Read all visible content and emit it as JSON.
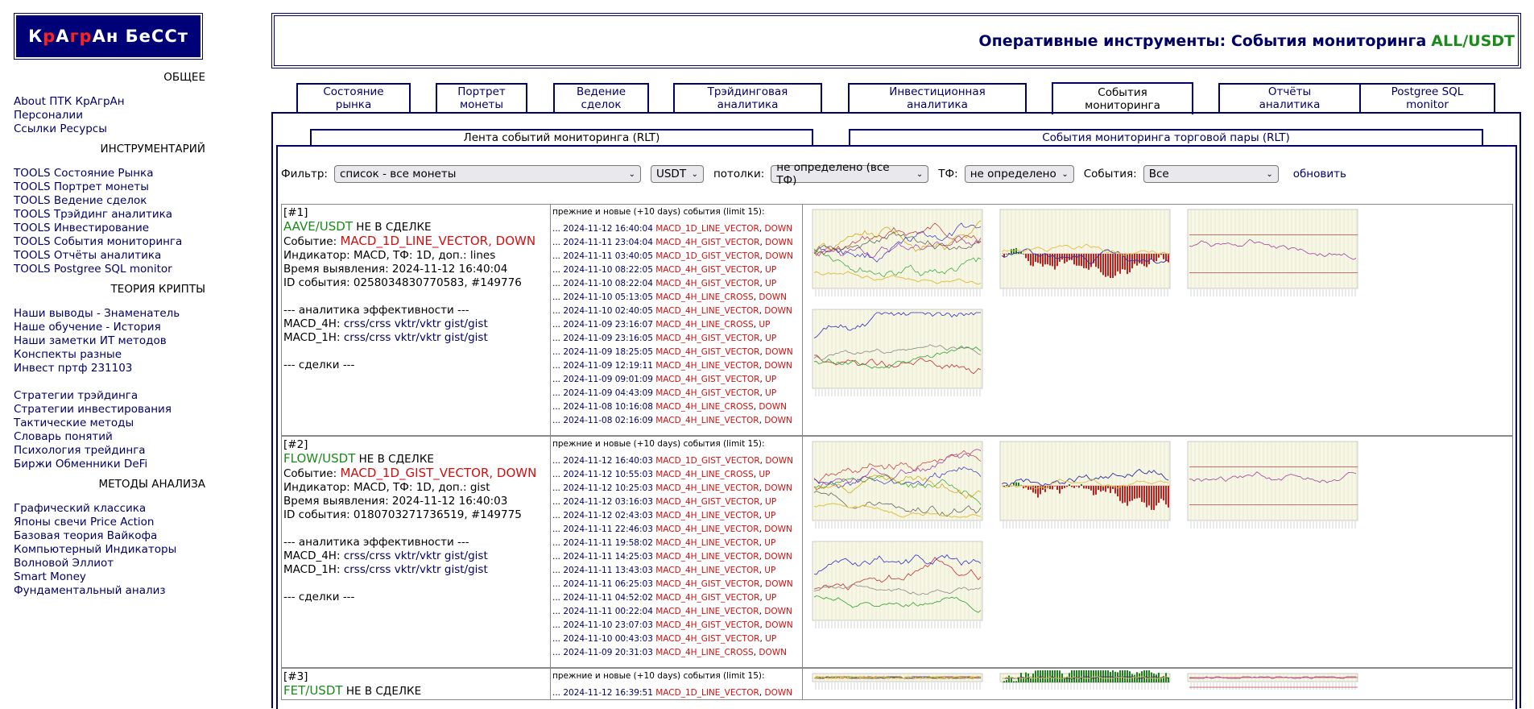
{
  "logo": {
    "parts": [
      {
        "t": "К",
        "red": false
      },
      {
        "t": "р",
        "red": true
      },
      {
        "t": "А",
        "red": false
      },
      {
        "t": "гр",
        "red": true
      },
      {
        "t": "А",
        "red": false
      },
      {
        "t": "н БеССт",
        "red": false
      }
    ]
  },
  "sidebar": {
    "sections": [
      {
        "title": "ОБЩЕЕ",
        "links": [
          "About ПТК КрАгрАн",
          "Персоналии",
          "Ссылки Ресурсы"
        ]
      },
      {
        "title": "ИНСТРУМЕНТАРИЙ",
        "links": [
          "TOOLS Состояние Рынка",
          "TOOLS Портрет монеты",
          "TOOLS Ведение сделок",
          "TOOLS Трэйдинг аналитика",
          "TOOLS Инвестирование",
          "TOOLS События мониторинга",
          "TOOLS Отчёты аналитика",
          "TOOLS Postgree SQL monitor"
        ]
      },
      {
        "title": "ТЕОРИЯ КРИПТЫ",
        "links": [
          "Наши выводы - Знаменатель",
          "Наше обучение - История",
          "Наши заметки ИТ методов",
          "Конспекты разные",
          "Инвест пртф 231103"
        ],
        "links2": [
          "Стратегии трэйдинга",
          "Стратегии инвестирования",
          "Тактические методы",
          "Словарь понятий",
          "Психология трейдинга",
          "Биржи Обменники DeFi"
        ]
      },
      {
        "title": "МЕТОДЫ АНАЛИЗА",
        "links": [
          "Графический классика",
          "Японы свечи Price Action",
          "Базовая теория Вайкофа",
          "Компьютерный Индикаторы",
          "Волновой Эллиот",
          "Smart Money",
          "Фундаментальный анализ"
        ]
      }
    ]
  },
  "header": {
    "title": "Оперативные инструменты: События мониторинга",
    "pair": "ALL/USDT"
  },
  "main_tabs": [
    {
      "l1": "Состояние",
      "l2": "рынка"
    },
    {
      "l1": "Портрет",
      "l2": "монеты"
    },
    {
      "l1": "Ведение",
      "l2": "сделок"
    },
    {
      "l1": "Трэйдинговая",
      "l2": "аналитика"
    },
    {
      "l1": "Инвестиционная",
      "l2": "аналитика"
    },
    {
      "l1": "События",
      "l2": "мониторинга"
    },
    {
      "l1": "Отчёты",
      "l2": "аналитика"
    },
    {
      "l1": "Postgree SQL",
      "l2": "monitor"
    }
  ],
  "sub_tabs": [
    "Лента событий мониторинга (RLT)",
    "События мониторинга торговой пары (RLT)"
  ],
  "filter": {
    "label": "Фильтр:",
    "coins": "список - все монеты",
    "quote": "USDT",
    "ceil_label": "потолки:",
    "ceil": "не определено (все ТФ)",
    "tf_label": "ТФ:",
    "tf": "не определено",
    "events_label": "События:",
    "events": "Все",
    "refresh": "обновить"
  },
  "events_header": "прежние и новые (+10 days) события (limit 15):",
  "rows": [
    {
      "num": "[#1]",
      "pair": "AAVE/USDT",
      "status": "НЕ В СДЕЛКЕ",
      "event_label": "Событие:",
      "event": "MACD_1D_LINE_VECTOR, DOWN",
      "indicator": "Индикатор: MACD, ТФ: 1D, доп.: lines",
      "time": "Время выявления: 2024-11-12 16:40:04",
      "id": "ID события: 0258034830770583, #149776",
      "analytics": "--- аналитика эффективности ---",
      "m4_label": "MACD_4H:",
      "m1_label": "MACD_1H:",
      "links": [
        "crss/crss",
        "vktr/vktr",
        "gist/gist"
      ],
      "deals": "--- сделки ---",
      "events": [
        [
          "2024-11-12 16:40:04",
          "MACD_1D_LINE_VECTOR",
          "DOWN"
        ],
        [
          "2024-11-11 23:04:04",
          "MACD_4H_GIST_VECTOR",
          "DOWN"
        ],
        [
          "2024-11-11 03:40:05",
          "MACD_1D_GIST_VECTOR",
          "DOWN"
        ],
        [
          "2024-11-10 08:22:05",
          "MACD_4H_GIST_VECTOR",
          "UP"
        ],
        [
          "2024-11-10 08:22:04",
          "MACD_4H_GIST_VECTOR",
          "UP"
        ],
        [
          "2024-11-10 05:13:05",
          "MACD_4H_LINE_CROSS",
          "DOWN"
        ],
        [
          "2024-11-10 02:40:05",
          "MACD_4H_LINE_VECTOR",
          "DOWN"
        ],
        [
          "2024-11-09 23:16:07",
          "MACD_4H_LINE_CROSS",
          "UP"
        ],
        [
          "2024-11-09 23:16:05",
          "MACD_4H_GIST_VECTOR",
          "UP"
        ],
        [
          "2024-11-09 18:25:05",
          "MACD_4H_GIST_VECTOR",
          "DOWN"
        ],
        [
          "2024-11-09 12:19:11",
          "MACD_4H_LINE_VECTOR",
          "DOWN"
        ],
        [
          "2024-11-09 09:01:09",
          "MACD_4H_GIST_VECTOR",
          "UP"
        ],
        [
          "2024-11-09 04:43:09",
          "MACD_4H_GIST_VECTOR",
          "UP"
        ],
        [
          "2024-11-08 10:16:08",
          "MACD_4H_LINE_CROSS",
          "DOWN"
        ],
        [
          "2024-11-08 02:16:09",
          "MACD_4H_LINE_VECTOR",
          "DOWN"
        ]
      ]
    },
    {
      "num": "[#2]",
      "pair": "FLOW/USDT",
      "status": "НЕ В СДЕЛКЕ",
      "event_label": "Событие:",
      "event": "MACD_1D_GIST_VECTOR, DOWN",
      "indicator": "Индикатор: MACD, ТФ: 1D, доп.: gist",
      "time": "Время выявления: 2024-11-12 16:40:03",
      "id": "ID события: 0180703271736519, #149775",
      "analytics": "--- аналитика эффективности ---",
      "m4_label": "MACD_4H:",
      "m1_label": "MACD_1H:",
      "links": [
        "crss/crss",
        "vktr/vktr",
        "gist/gist"
      ],
      "deals": "--- сделки ---",
      "events": [
        [
          "2024-11-12 16:40:03",
          "MACD_1D_GIST_VECTOR",
          "DOWN"
        ],
        [
          "2024-11-12 10:55:03",
          "MACD_4H_LINE_CROSS",
          "UP"
        ],
        [
          "2024-11-12 10:25:03",
          "MACD_4H_LINE_VECTOR",
          "DOWN"
        ],
        [
          "2024-11-12 03:16:03",
          "MACD_4H_GIST_VECTOR",
          "UP"
        ],
        [
          "2024-11-12 02:43:03",
          "MACD_4H_LINE_VECTOR",
          "UP"
        ],
        [
          "2024-11-11 22:46:03",
          "MACD_4H_LINE_VECTOR",
          "DOWN"
        ],
        [
          "2024-11-11 19:58:02",
          "MACD_4H_LINE_VECTOR",
          "UP"
        ],
        [
          "2024-11-11 14:25:03",
          "MACD_4H_LINE_VECTOR",
          "DOWN"
        ],
        [
          "2024-11-11 13:43:03",
          "MACD_4H_LINE_VECTOR",
          "UP"
        ],
        [
          "2024-11-11 06:25:03",
          "MACD_4H_GIST_VECTOR",
          "DOWN"
        ],
        [
          "2024-11-11 04:52:02",
          "MACD_4H_GIST_VECTOR",
          "UP"
        ],
        [
          "2024-11-11 00:22:04",
          "MACD_4H_LINE_VECTOR",
          "DOWN"
        ],
        [
          "2024-11-10 23:07:03",
          "MACD_4H_GIST_VECTOR",
          "DOWN"
        ],
        [
          "2024-11-10 00:43:03",
          "MACD_4H_GIST_VECTOR",
          "UP"
        ],
        [
          "2024-11-09 20:31:03",
          "MACD_4H_LINE_CROSS",
          "DOWN"
        ]
      ]
    },
    {
      "num": "[#3]",
      "pair": "FET/USDT",
      "status": "НЕ В СДЕЛКЕ",
      "events": [
        [
          "2024-11-12 16:39:51",
          "MACD_1D_LINE_VECTOR",
          "DOWN"
        ]
      ]
    }
  ]
}
